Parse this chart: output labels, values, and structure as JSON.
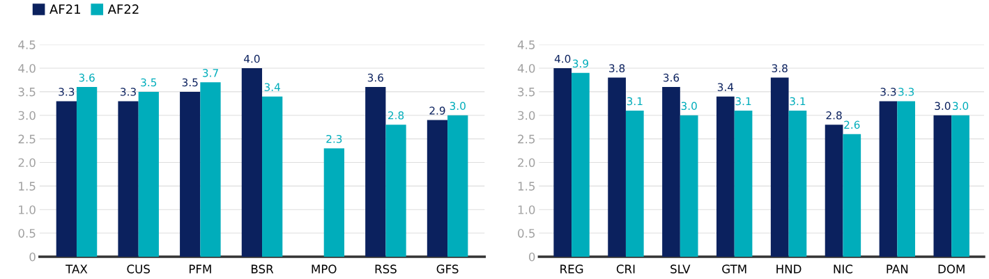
{
  "chart_data": [
    {
      "type": "bar",
      "categories": [
        "TAX",
        "CUS",
        "PFM",
        "BSR",
        "MPO",
        "RSS",
        "GFS"
      ],
      "series": [
        {
          "name": "AF21",
          "color": "#0b215e",
          "values": [
            3.3,
            3.3,
            3.5,
            4.0,
            null,
            3.6,
            2.9
          ],
          "value_labels": [
            "3.3",
            "3.3",
            "3.5",
            "4.0",
            null,
            "3.6",
            "2.9"
          ]
        },
        {
          "name": "AF22",
          "color": "#00adbb",
          "values": [
            3.6,
            3.5,
            3.7,
            3.4,
            2.3,
            2.8,
            3.0
          ],
          "value_labels": [
            "3.6",
            "3.5",
            "3.7",
            "3.4",
            "2.3",
            "2.8",
            "3.0"
          ]
        }
      ],
      "ylim": [
        0,
        4.5
      ],
      "yticks": [
        0,
        {
          "value": 0.5,
          "label": "0.5"
        },
        {
          "value": 1,
          "label": "1.0"
        },
        {
          "value": 1.5,
          "label": "1.5"
        },
        {
          "value": 2,
          "label": "2.0"
        },
        {
          "value": 2.5,
          "label": "2.5"
        },
        {
          "value": 3,
          "label": "3.0"
        },
        {
          "value": 3.5,
          "label": "3.5"
        },
        {
          "value": 4,
          "label": "4.0"
        },
        {
          "value": 4.5,
          "label": "4.5"
        }
      ],
      "grid": "y",
      "legend": "top left"
    },
    {
      "type": "bar",
      "categories": [
        "REG",
        "CRI",
        "SLV",
        "GTM",
        "HND",
        "NIC",
        "PAN",
        "DOM"
      ],
      "series": [
        {
          "color": "#0b215e",
          "values": [
            4.0,
            3.8,
            3.6,
            3.4,
            3.8,
            2.8,
            3.3,
            3.0
          ],
          "value_labels": [
            "4.0",
            "3.8",
            "3.6",
            "3.4",
            "3.8",
            "2.8",
            "3.3",
            "3.0"
          ]
        },
        {
          "color": "#00adbb",
          "values": [
            3.9,
            3.1,
            3.0,
            3.1,
            3.1,
            2.6,
            3.3,
            3.0
          ],
          "value_labels": [
            "3.9",
            "3.1",
            "3.0",
            "3.1",
            "3.1",
            "2.6",
            "3.3",
            "3.0"
          ]
        }
      ],
      "ylim": [
        0,
        4.5
      ],
      "yticks": [
        0,
        {
          "value": 0.5,
          "label": "0.5"
        },
        {
          "value": 1,
          "label": "1.0"
        },
        {
          "value": 1.5,
          "label": "1.5"
        },
        {
          "value": 2,
          "label": "2.0"
        },
        {
          "value": 2.5,
          "label": "2.5"
        },
        {
          "value": 3,
          "label": "3.0"
        },
        {
          "value": 3.5,
          "label": "3.5"
        },
        {
          "value": 4,
          "label": "4.0"
        },
        {
          "value": 4.5,
          "label": "4.5"
        }
      ],
      "grid": "y"
    }
  ]
}
